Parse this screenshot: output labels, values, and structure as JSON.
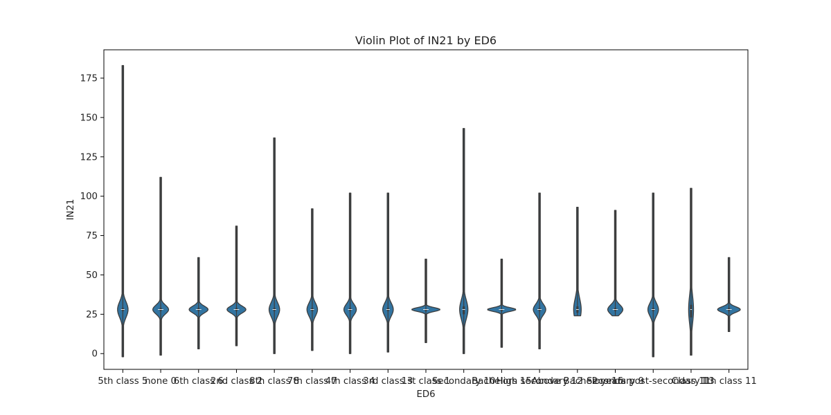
{
  "chart_data": {
    "type": "violin",
    "title": "Violin Plot of IN21 by ED6",
    "xlabel": "ED6",
    "ylabel": "IN21",
    "ylim": [
      -10,
      193
    ],
    "yticks": [
      0,
      25,
      50,
      75,
      100,
      125,
      150,
      175
    ],
    "grid": false,
    "color": "#3274a1",
    "edge_color": "#3d3d3d",
    "series": [
      {
        "category": "5th class 5",
        "min": -2,
        "max": 183,
        "q1": 27,
        "median": 28,
        "q3": 29,
        "kde_halfwidth": 0.28,
        "kde_spread": 5
      },
      {
        "category": "none 0",
        "min": -1,
        "max": 112,
        "q1": 27,
        "median": 28,
        "q3": 29,
        "kde_halfwidth": 0.42,
        "kde_spread": 2.8
      },
      {
        "category": "6th class 6",
        "min": 3,
        "max": 61,
        "q1": 27,
        "median": 28,
        "q3": 29,
        "kde_halfwidth": 0.5,
        "kde_spread": 2.2
      },
      {
        "category": "2nd class 2",
        "min": 5,
        "max": 81,
        "q1": 27,
        "median": 28,
        "q3": 29,
        "kde_halfwidth": 0.5,
        "kde_spread": 2.2
      },
      {
        "category": "8th class 8",
        "min": 0,
        "max": 137,
        "q1": 27,
        "median": 28,
        "q3": 29,
        "kde_halfwidth": 0.28,
        "kde_spread": 4.5
      },
      {
        "category": "7th class 7",
        "min": 2,
        "max": 92,
        "q1": 27,
        "median": 28,
        "q3": 29,
        "kde_halfwidth": 0.28,
        "kde_spread": 4.2
      },
      {
        "category": "4th class 4",
        "min": 0,
        "max": 102,
        "q1": 27,
        "median": 28,
        "q3": 29,
        "kde_halfwidth": 0.33,
        "kde_spread": 3.5
      },
      {
        "category": "3rd class 3",
        "min": 1,
        "max": 102,
        "q1": 27,
        "median": 28,
        "q3": 29,
        "kde_halfwidth": 0.28,
        "kde_spread": 4.2
      },
      {
        "category": "1st class 1",
        "min": 7,
        "max": 60,
        "q1": 27,
        "median": 28,
        "q3": 28,
        "kde_halfwidth": 0.75,
        "kde_spread": 1.2
      },
      {
        "category": "Secondary 10",
        "min": 0,
        "max": 143,
        "q1": 25,
        "median": 28,
        "q3": 30,
        "kde_halfwidth": 0.22,
        "kde_spread": 6
      },
      {
        "category": "Bachelors 15",
        "min": 4,
        "max": 60,
        "q1": 27,
        "median": 28,
        "q3": 28,
        "kde_halfwidth": 0.75,
        "kde_spread": 1.2
      },
      {
        "category": "High secondary 12",
        "min": 3,
        "max": 102,
        "q1": 27,
        "median": 28,
        "q3": 29,
        "kde_halfwidth": 0.33,
        "kde_spread": 3.5
      },
      {
        "category": "Above Bachelors 16",
        "min": 24,
        "max": 93,
        "q1": 26,
        "median": 28,
        "q3": 30,
        "kde_halfwidth": 0.2,
        "kde_spread": 7
      },
      {
        "category": "Secondary 9",
        "min": 24,
        "max": 91,
        "q1": 27,
        "median": 28,
        "q3": 29,
        "kde_halfwidth": 0.4,
        "kde_spread": 3
      },
      {
        "category": "2 years post-secondary 13",
        "min": -2,
        "max": 102,
        "q1": 27,
        "median": 28,
        "q3": 29,
        "kde_halfwidth": 0.28,
        "kde_spread": 4.2
      },
      {
        "category": "Class 11",
        "min": -1,
        "max": 105,
        "q1": 23,
        "median": 28,
        "q3": 31,
        "kde_halfwidth": 0.13,
        "kde_spread": 9
      },
      {
        "category": "1th class 11",
        "min": 14,
        "max": 61,
        "q1": 27,
        "median": 28,
        "q3": 29,
        "kde_halfwidth": 0.6,
        "kde_spread": 1.8
      }
    ],
    "xtick_labels": [
      "5th class 5",
      "none 0",
      "6th class 6",
      "2nd class 2",
      "8th class 8",
      "7th class 7",
      "4th class 4",
      "3rd class 3",
      "1st class 1",
      "Secondary 10",
      "Bachelors 15",
      "High secondary 12",
      "Above Bachelors 16",
      "Secondary 9",
      "2 years post-secondary 13",
      "Class 11",
      "1th class 11"
    ]
  }
}
